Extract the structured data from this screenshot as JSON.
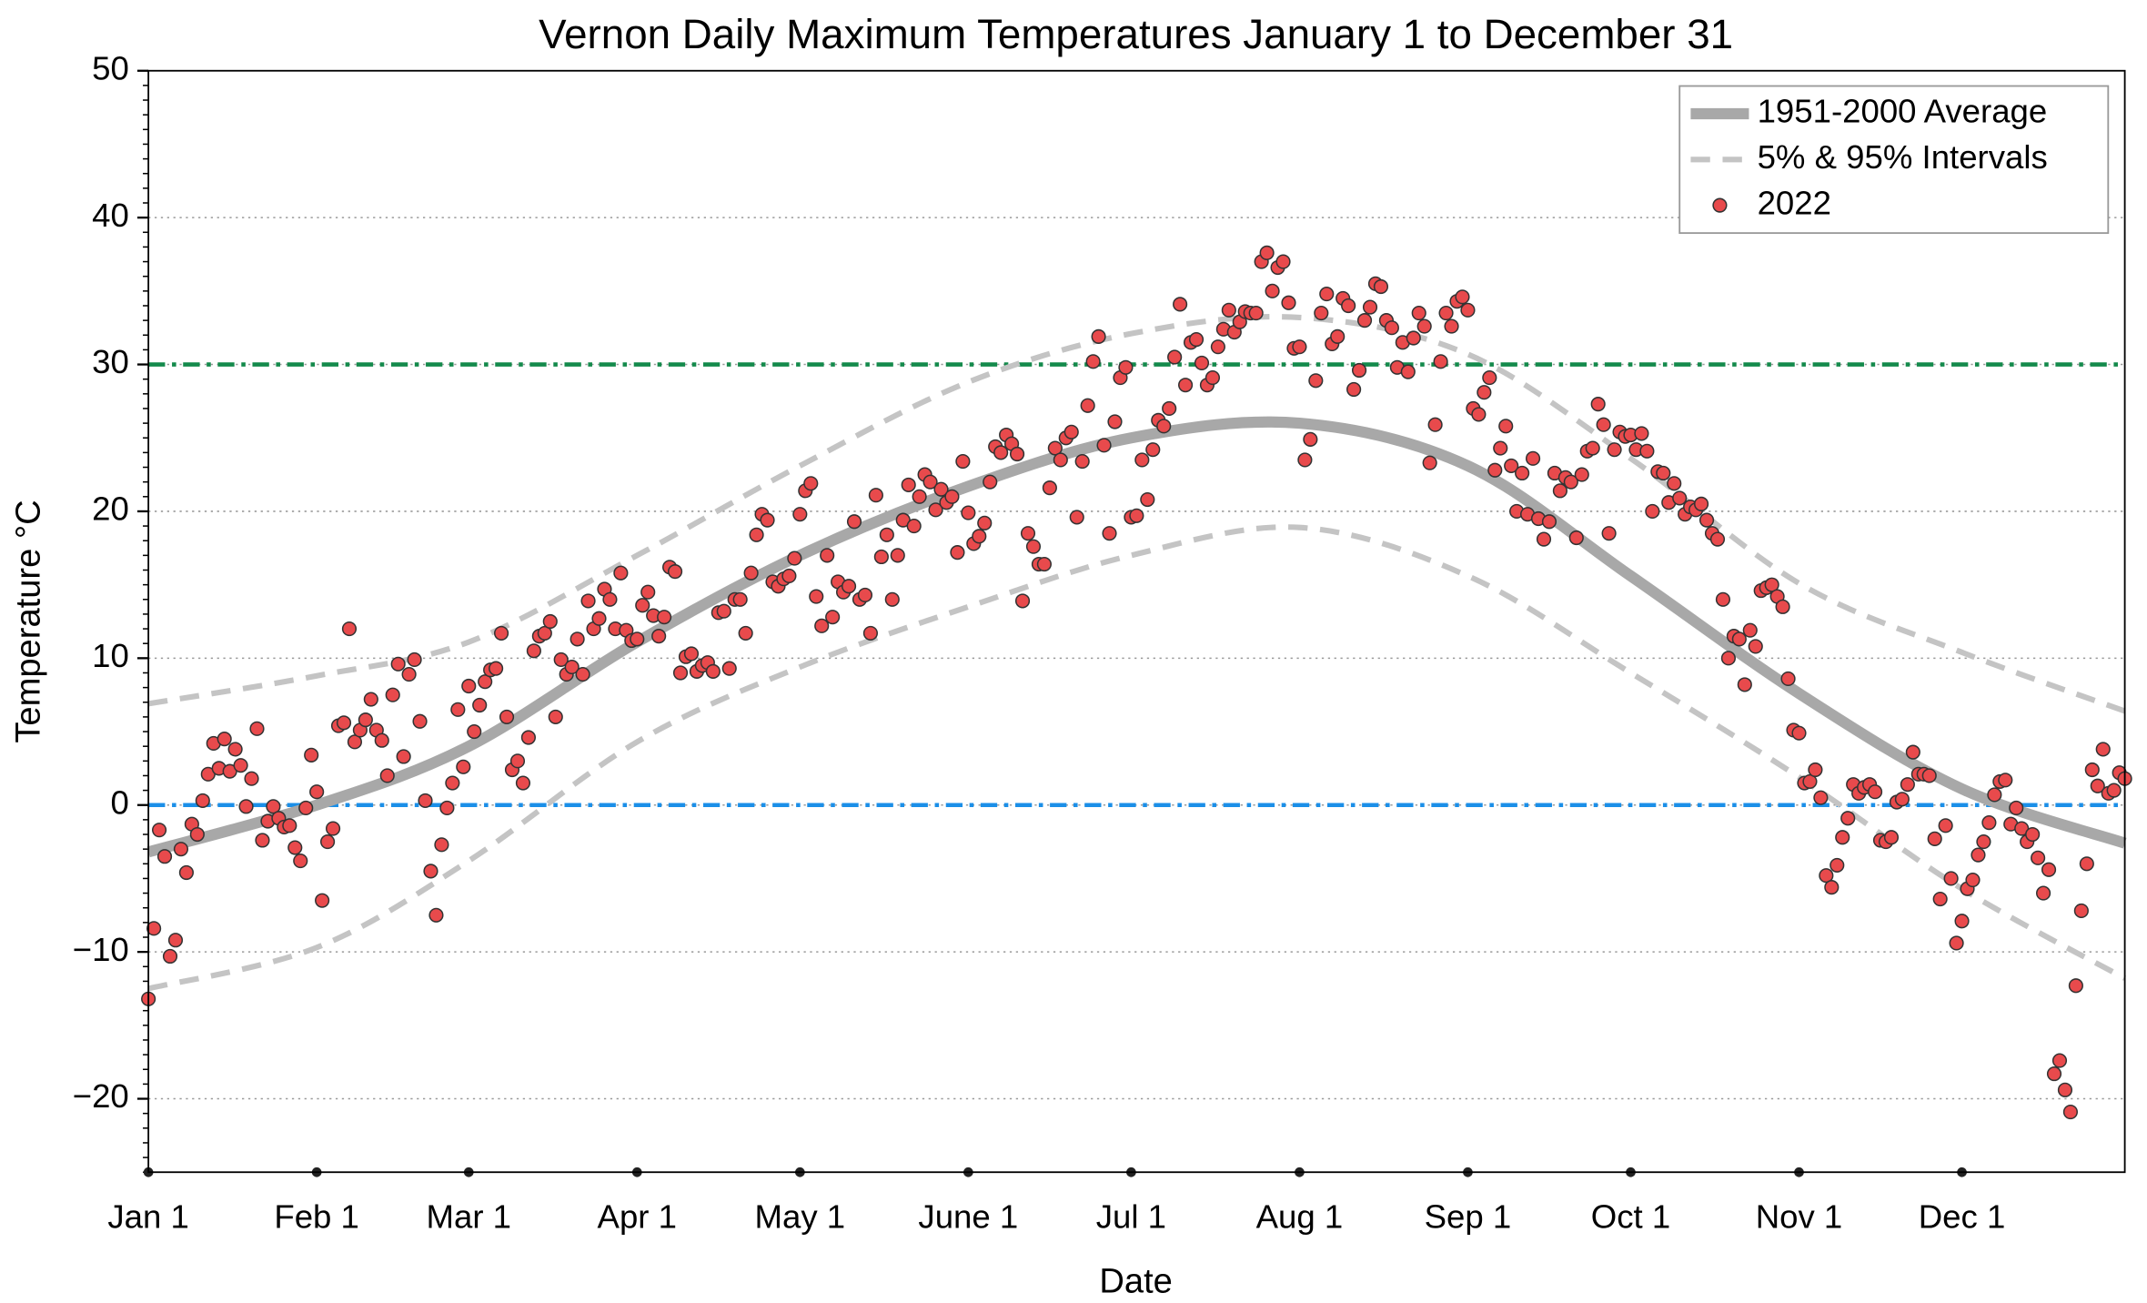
{
  "chart_data": {
    "type": "scatter",
    "title": "Vernon Daily Maximum Temperatures January 1 to December 31",
    "xlabel": "Date",
    "ylabel": "Temperature °C",
    "xlim": [
      0,
      364
    ],
    "ylim": [
      -25,
      50
    ],
    "xticks": [
      {
        "value": 0,
        "label": "Jan 1"
      },
      {
        "value": 31,
        "label": "Feb 1"
      },
      {
        "value": 59,
        "label": "Mar 1"
      },
      {
        "value": 90,
        "label": "Apr 1"
      },
      {
        "value": 120,
        "label": "May 1"
      },
      {
        "value": 151,
        "label": "June 1"
      },
      {
        "value": 181,
        "label": "Jul 1"
      },
      {
        "value": 212,
        "label": "Aug 1"
      },
      {
        "value": 243,
        "label": "Sep 1"
      },
      {
        "value": 273,
        "label": "Oct 1"
      },
      {
        "value": 304,
        "label": "Nov 1"
      },
      {
        "value": 334,
        "label": "Dec 1"
      }
    ],
    "yticks": [
      {
        "value": -20,
        "label": "−20"
      },
      {
        "value": -10,
        "label": "−10"
      },
      0,
      10,
      20,
      30,
      40,
      50
    ],
    "grid": true,
    "legend": "upper right",
    "hlines": [
      {
        "value": 30,
        "color": "#148a4c"
      },
      {
        "value": 0,
        "color": "#1b8fe8"
      }
    ],
    "series": [
      {
        "name": "1951-2000 Average",
        "type": "line",
        "style": "solid",
        "color": "#a8a8a8",
        "x": [
          0,
          31,
          59,
          90,
          120,
          151,
          181,
          212,
          243,
          273,
          304,
          334,
          364
        ],
        "values": [
          -3.2,
          0,
          4,
          11.1,
          17,
          21.7,
          25,
          26,
          23.1,
          15.6,
          7.6,
          1.1,
          -2.6
        ]
      },
      {
        "name": "5% & 95% Intervals",
        "type": "line",
        "style": "dashed",
        "color": "#c4c4c4",
        "x": [
          0,
          31,
          59,
          90,
          120,
          151,
          181,
          212,
          243,
          273,
          304,
          334,
          364
        ],
        "values": [
          6.9,
          8.8,
          11.1,
          17,
          23.1,
          28.8,
          32.1,
          33.2,
          30.7,
          23.6,
          15.1,
          10.4,
          6.4
        ]
      },
      {
        "type": "line",
        "style": "dashed",
        "color": "#c4c4c4",
        "x": [
          0,
          31,
          59,
          90,
          120,
          151,
          181,
          212,
          243,
          273,
          304,
          334,
          364
        ],
        "values": [
          -12.5,
          -9.7,
          -3.8,
          4.3,
          9.4,
          13.5,
          17,
          18.9,
          15.6,
          9,
          1.9,
          -5.7,
          -11.8
        ]
      },
      {
        "name": "2022",
        "type": "scatter",
        "color": "#e84a4c",
        "x": [
          0,
          1,
          2,
          3,
          4,
          5,
          6,
          7,
          8,
          9,
          10,
          11,
          12,
          13,
          14,
          15,
          16,
          17,
          18,
          19,
          20,
          21,
          22,
          23,
          24,
          25,
          26,
          27,
          28,
          29,
          30,
          31,
          32,
          33,
          34,
          35,
          36,
          37,
          38,
          39,
          40,
          41,
          42,
          43,
          44,
          45,
          46,
          47,
          48,
          49,
          50,
          51,
          52,
          53,
          54,
          55,
          56,
          57,
          58,
          59,
          60,
          61,
          62,
          63,
          64,
          65,
          66,
          67,
          68,
          69,
          70,
          71,
          72,
          73,
          74,
          75,
          76,
          77,
          78,
          79,
          80,
          81,
          82,
          83,
          84,
          85,
          86,
          87,
          88,
          89,
          90,
          91,
          92,
          93,
          94,
          95,
          96,
          97,
          98,
          99,
          100,
          101,
          102,
          103,
          104,
          105,
          106,
          107,
          108,
          109,
          110,
          111,
          112,
          113,
          114,
          115,
          116,
          117,
          118,
          119,
          120,
          121,
          122,
          123,
          124,
          125,
          126,
          127,
          128,
          129,
          130,
          131,
          132,
          133,
          134,
          135,
          136,
          137,
          138,
          139,
          140,
          141,
          142,
          143,
          144,
          145,
          146,
          147,
          148,
          149,
          150,
          151,
          152,
          153,
          154,
          155,
          156,
          157,
          158,
          159,
          160,
          161,
          162,
          163,
          164,
          165,
          166,
          167,
          168,
          169,
          170,
          171,
          172,
          173,
          174,
          175,
          176,
          177,
          178,
          179,
          180,
          181,
          182,
          183,
          184,
          185,
          186,
          187,
          188,
          189,
          190,
          191,
          192,
          193,
          194,
          195,
          196,
          197,
          198,
          199,
          200,
          201,
          202,
          203,
          204,
          205,
          206,
          207,
          208,
          209,
          210,
          211,
          212,
          213,
          214,
          215,
          216,
          217,
          218,
          219,
          220,
          221,
          222,
          223,
          224,
          225,
          226,
          227,
          228,
          229,
          230,
          231,
          232,
          233,
          234,
          235,
          236,
          237,
          238,
          239,
          240,
          241,
          242,
          243,
          244,
          245,
          246,
          247,
          248,
          249,
          250,
          251,
          252,
          253,
          254,
          255,
          256,
          257,
          258,
          259,
          260,
          261,
          262,
          263,
          264,
          265,
          266,
          267,
          268,
          269,
          270,
          271,
          272,
          273,
          274,
          275,
          276,
          277,
          278,
          279,
          280,
          281,
          282,
          283,
          284,
          285,
          286,
          287,
          288,
          289,
          290,
          291,
          292,
          293,
          294,
          295,
          296,
          297,
          298,
          299,
          300,
          301,
          302,
          303,
          304,
          305,
          306,
          307,
          308,
          309,
          310,
          311,
          312,
          313,
          314,
          315,
          316,
          317,
          318,
          319,
          320,
          321,
          322,
          323,
          324,
          325,
          326,
          327,
          328,
          329,
          330,
          331,
          332,
          333,
          334,
          335,
          336,
          337,
          338,
          339,
          340,
          341,
          342,
          343,
          344,
          345,
          346,
          347,
          348,
          349,
          350,
          351,
          352,
          353,
          354,
          355,
          356,
          357,
          358,
          359,
          360,
          361,
          362,
          363,
          364
        ],
        "values": [
          -13.2,
          -8.4,
          -1.7,
          -3.5,
          -10.3,
          -9.2,
          -3,
          -4.6,
          -1.3,
          -2,
          0.3,
          2.1,
          4.2,
          2.5,
          4.5,
          2.3,
          3.8,
          2.7,
          -0.1,
          1.8,
          5.2,
          -2.4,
          -1.1,
          -0.1,
          -0.9,
          -1.5,
          -1.4,
          -2.9,
          -3.8,
          -0.2,
          3.4,
          0.9,
          -6.5,
          -2.5,
          -1.6,
          5.4,
          5.6,
          12,
          4.3,
          5.1,
          5.8,
          7.2,
          5.1,
          4.4,
          2,
          7.5,
          9.6,
          3.3,
          8.9,
          9.9,
          5.7,
          0.3,
          -4.5,
          -7.5,
          -2.7,
          -0.2,
          1.5,
          6.5,
          2.6,
          8.1,
          5,
          6.8,
          8.4,
          9.2,
          9.3,
          11.7,
          6,
          2.4,
          3,
          1.5,
          4.6,
          10.5,
          11.5,
          11.7,
          12.5,
          6,
          9.9,
          8.9,
          9.4,
          11.3,
          8.9,
          13.9,
          12,
          12.7,
          14.7,
          14,
          12,
          15.8,
          11.9,
          11.2,
          11.3,
          13.6,
          14.5,
          12.9,
          11.5,
          12.8,
          16.2,
          15.9,
          9,
          10.1,
          10.3,
          9.1,
          9.5,
          9.7,
          9.1,
          13.1,
          13.2,
          9.3,
          14,
          14,
          11.7,
          15.8,
          18.4,
          19.8,
          19.4,
          15.2,
          14.9,
          15.4,
          15.6,
          16.8,
          19.8,
          21.4,
          21.9,
          14.2,
          12.2,
          17,
          12.8,
          15.2,
          14.5,
          14.9,
          19.3,
          14,
          14.3,
          11.7,
          21.1,
          16.9,
          18.4,
          14,
          17,
          19.4,
          21.8,
          19,
          21,
          22.5,
          22,
          20.1,
          21.5,
          20.6,
          21,
          17.2,
          23.4,
          19.9,
          17.8,
          18.3,
          19.2,
          22,
          24.4,
          24,
          25.2,
          24.6,
          23.9,
          13.9,
          18.5,
          17.6,
          16.4,
          16.4,
          21.6,
          24.3,
          23.5,
          25,
          25.4,
          19.6,
          23.4,
          27.2,
          30.2,
          31.9,
          24.5,
          18.5,
          26.1,
          29.1,
          29.8,
          19.6,
          19.7,
          23.5,
          20.8,
          24.2,
          26.2,
          25.8,
          27,
          30.5,
          34.1,
          28.6,
          31.5,
          31.7,
          30.1,
          28.6,
          29.1,
          31.2,
          32.4,
          33.7,
          32.2,
          32.9,
          33.6,
          33.5,
          33.5,
          37,
          37.6,
          35,
          36.6,
          37,
          34.2,
          31.1,
          31.2,
          23.5,
          24.9,
          28.9,
          33.5,
          34.8,
          31.4,
          31.9,
          34.5,
          34,
          28.3,
          29.6,
          33,
          33.9,
          35.5,
          35.3,
          33,
          32.5,
          29.8,
          31.5,
          29.5,
          31.8,
          33.5,
          32.6,
          23.3,
          25.9,
          30.2,
          33.5,
          32.6,
          34.3,
          34.6,
          33.7,
          27,
          26.6,
          28.1,
          29.1,
          22.8,
          24.3,
          25.8,
          23.1,
          20,
          22.6,
          19.8,
          23.6,
          19.5,
          18.1,
          19.3,
          22.6,
          21.4,
          22.3,
          22,
          18.2,
          22.5,
          24.1,
          24.3,
          27.3,
          25.9,
          18.5,
          24.2,
          25.4,
          25.1,
          25.2,
          24.2,
          25.3,
          24.1,
          20,
          22.7,
          22.6,
          20.6,
          21.9,
          20.9,
          19.8,
          20.3,
          20.1,
          20.5,
          19.4,
          18.5,
          18.1,
          14,
          10,
          11.5,
          11.3,
          8.2,
          11.9,
          10.8,
          14.6,
          14.8,
          15,
          14.2,
          13.5,
          8.6,
          5.1,
          4.9,
          1.5,
          1.6,
          2.4,
          0.5,
          -4.8,
          -5.6,
          -4.1,
          -2.2,
          -0.9,
          1.4,
          0.8,
          1.2,
          1.4,
          0.9,
          -2.4,
          -2.5,
          -2.2,
          0.2,
          0.4,
          1.4,
          3.6,
          2.1,
          2.1,
          2,
          -2.3,
          -6.4,
          -1.4,
          -5,
          -9.4,
          -7.9,
          -5.7,
          -5.1,
          -3.4,
          -2.5,
          -1.2,
          0.7,
          1.6,
          1.7,
          -1.3,
          -0.2,
          -1.6,
          -2.5,
          -2,
          -3.6,
          -6,
          -4.4,
          -18.3,
          -17.4,
          -19.4,
          -20.9,
          -12.3,
          -7.2,
          -4,
          2.4,
          1.3,
          3.8,
          0.8,
          1,
          2.2,
          1.8
        ]
      }
    ]
  }
}
